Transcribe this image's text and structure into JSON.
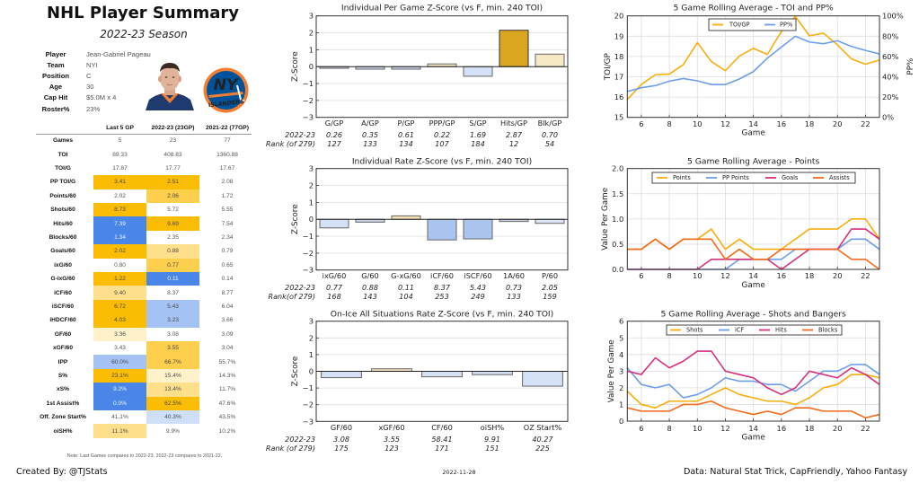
{
  "header": {
    "title": "NHL Player Summary",
    "season": "2022-23 Season"
  },
  "player": {
    "fields": [
      {
        "label": "Player",
        "value": "Jean-Gabriel Pageau"
      },
      {
        "label": "Team",
        "value": "NYI"
      },
      {
        "label": "Position",
        "value": "C"
      },
      {
        "label": "Age",
        "value": "30"
      },
      {
        "label": "Cap Hit",
        "value": "$5.0M x 4"
      },
      {
        "label": "Roster%",
        "value": "23%"
      }
    ],
    "headshot_icon": "player-headshot",
    "team_logo": {
      "icon": "new-york-islanders-logo",
      "mark": "NY",
      "wordmark": "ISLANDERS",
      "colors": {
        "primary": "#00539B",
        "secondary": "#F47D30"
      }
    }
  },
  "stats_table": {
    "columns": [
      "Last 5 GP",
      "2022-23 (23GP)",
      "2021-22 (77GP)"
    ],
    "palette": {
      "gold_strong": "#FBBC04",
      "gold_medium": "#FDCF4C",
      "gold_light": "#FEDF8C",
      "gold_pale": "#FFF1C9",
      "blue_strong": "#4A86E8",
      "blue_light": "#A4C2F4",
      "blue_pale": "#CFDFF8"
    },
    "rows": [
      {
        "label": "Games",
        "values": [
          "5",
          "23",
          "77"
        ],
        "shade": [
          null,
          null,
          null
        ]
      },
      {
        "label": "TOI",
        "values": [
          "89.33",
          "408.83",
          "1360.88"
        ],
        "shade": [
          null,
          null,
          null
        ]
      },
      {
        "label": "TOI/G",
        "values": [
          "17.87",
          "17.77",
          "17.67"
        ],
        "shade": [
          null,
          null,
          null
        ]
      },
      {
        "label": "PP TOI/G",
        "values": [
          "3.41",
          "2.51",
          "2.08"
        ],
        "shade": [
          "gold_strong",
          "gold_strong",
          null
        ]
      },
      {
        "label": "Points/60",
        "values": [
          "2.02",
          "2.06",
          "1.72"
        ],
        "shade": [
          null,
          "gold_medium",
          null
        ]
      },
      {
        "label": "Shots/60",
        "values": [
          "8.73",
          "5.72",
          "5.55"
        ],
        "shade": [
          "gold_strong",
          null,
          null
        ]
      },
      {
        "label": "Hits/60",
        "values": [
          "7.39",
          "9.69",
          "7.54"
        ],
        "shade": [
          "blue_strong",
          "gold_strong",
          null
        ]
      },
      {
        "label": "Blocks/60",
        "values": [
          "1.34",
          "2.35",
          "2.34"
        ],
        "shade": [
          "blue_strong",
          null,
          null
        ]
      },
      {
        "label": "Goals/60",
        "values": [
          "2.02",
          "0.88",
          "0.79"
        ],
        "shade": [
          "gold_strong",
          "gold_light",
          null
        ]
      },
      {
        "label": "ixG/60",
        "values": [
          "0.80",
          "0.77",
          "0.65"
        ],
        "shade": [
          null,
          "gold_medium",
          null
        ]
      },
      {
        "label": "G-ixG/60",
        "values": [
          "1.22",
          "0.11",
          "0.14"
        ],
        "shade": [
          "gold_strong",
          "blue_strong",
          null
        ]
      },
      {
        "label": "iCF/60",
        "values": [
          "9.40",
          "8.37",
          "8.77"
        ],
        "shade": [
          "gold_light",
          null,
          null
        ]
      },
      {
        "label": "iSCF/60",
        "values": [
          "6.72",
          "5.43",
          "6.04"
        ],
        "shade": [
          "gold_strong",
          "blue_light",
          null
        ]
      },
      {
        "label": "iHDCF/60",
        "values": [
          "4.03",
          "3.23",
          "3.66"
        ],
        "shade": [
          "gold_strong",
          "blue_light",
          null
        ]
      },
      {
        "label": "GF/60",
        "values": [
          "3.36",
          "3.08",
          "3.09"
        ],
        "shade": [
          "gold_pale",
          null,
          null
        ]
      },
      {
        "label": "xGF/60",
        "values": [
          "3.43",
          "3.55",
          "3.04"
        ],
        "shade": [
          null,
          "gold_medium",
          null
        ]
      },
      {
        "label": "IPP",
        "values": [
          "60.0%",
          "66.7%",
          "55.7%"
        ],
        "shade": [
          "blue_light",
          "gold_medium",
          null
        ]
      },
      {
        "label": "S%",
        "values": [
          "23.1%",
          "15.4%",
          "14.3%"
        ],
        "shade": [
          "gold_strong",
          "gold_pale",
          null
        ]
      },
      {
        "label": "xS%",
        "values": [
          "9.2%",
          "13.4%",
          "11.7%"
        ],
        "shade": [
          "blue_strong",
          "gold_light",
          null
        ]
      },
      {
        "label": "1st Assist%",
        "values": [
          "0.0%",
          "62.5%",
          "47.6%"
        ],
        "shade": [
          "blue_strong",
          "gold_strong",
          null
        ]
      },
      {
        "label": "Off. Zone Start%",
        "values": [
          "41.1%",
          "40.3%",
          "43.5%"
        ],
        "shade": [
          null,
          "blue_pale",
          null
        ]
      },
      {
        "label": "oiSH%",
        "values": [
          "11.1%",
          "9.9%",
          "10.2%"
        ],
        "shade": [
          "gold_light",
          null,
          null
        ]
      }
    ],
    "note": "Note: Last Games compares to 2022-23. 2022-23 compares to 2021-22."
  },
  "chart_data": [
    {
      "id": "per-game-z",
      "type": "bar",
      "title": "Individual Per Game Z-Score (vs F, min. 240 TOI)",
      "xlabel": "",
      "ylabel": "Z-Score",
      "ylim": [
        -3,
        3
      ],
      "yticks": [
        3,
        2,
        1,
        0,
        -1,
        -2,
        -3
      ],
      "ytick_labels": [
        "3",
        "2",
        "1",
        "0",
        "−1",
        "−2",
        "−3"
      ],
      "grid": "y",
      "categories": [
        "G/GP",
        "A/GP",
        "P/GP",
        "PPP/GP",
        "S/GP",
        "Hits/GP",
        "Blk/GP"
      ],
      "values": [
        -0.1,
        -0.15,
        -0.15,
        0.16,
        -0.57,
        2.15,
        0.74
      ],
      "colors": [
        "#C8D3E8",
        "#C8D3E8",
        "#C8D3E8",
        "#F8E8C0",
        "#D4E1F7",
        "#DAA520",
        "#F5E8C4"
      ],
      "rows": [
        {
          "label": "2022-23",
          "values": [
            "0.26",
            "0.35",
            "0.61",
            "0.22",
            "1.69",
            "2.87",
            "0.70"
          ]
        },
        {
          "label": "Rank (of 279)",
          "values": [
            "127",
            "133",
            "134",
            "107",
            "184",
            "12",
            "54"
          ]
        }
      ]
    },
    {
      "id": "rate-z",
      "type": "bar",
      "title": "Individual Rate Z-Score (vs F, min. 240 TOI)",
      "xlabel": "",
      "ylabel": "Z-Score",
      "ylim": [
        -3,
        3
      ],
      "yticks": [
        3,
        2,
        1,
        0,
        -1,
        -2,
        -3
      ],
      "ytick_labels": [
        "3",
        "2",
        "1",
        "0",
        "−1",
        "−2",
        "−3"
      ],
      "grid": "y",
      "categories": [
        "ixG/60",
        "G/60",
        "G-xG/60",
        "iCF/60",
        "iSCF/60",
        "1A/60",
        "P/60"
      ],
      "values": [
        -0.51,
        -0.17,
        0.2,
        -1.22,
        -1.16,
        -0.13,
        -0.24
      ],
      "colors": [
        "#D4E1F7",
        "#C8D3E8",
        "#F8E3B6",
        "#A9C4EE",
        "#AAC4EE",
        "#C8D3E8",
        "#DCE6F7"
      ],
      "rows": [
        {
          "label": "2022-23",
          "values": [
            "0.77",
            "0.88",
            "0.11",
            "8.37",
            "5.43",
            "0.73",
            "2.05"
          ]
        },
        {
          "label": "Rank(of 279)",
          "values": [
            "168",
            "143",
            "104",
            "253",
            "249",
            "133",
            "159"
          ]
        }
      ]
    },
    {
      "id": "on-ice-z",
      "type": "bar",
      "title": "On-Ice All Situations Rate Z-Score (vs F, min. 240 TOI)",
      "xlabel": "",
      "ylabel": "Z-Score",
      "ylim": [
        -3,
        3
      ],
      "yticks": [
        3,
        2,
        1,
        0,
        -1,
        -2,
        -3
      ],
      "ytick_labels": [
        "3",
        "2",
        "1",
        "0",
        "−1",
        "−2",
        "−3"
      ],
      "grid": "y",
      "categories": [
        "GF/60",
        "xGF/60",
        "CF/60",
        "oiSH%",
        "OZ Start%"
      ],
      "values": [
        -0.38,
        0.15,
        -0.33,
        -0.2,
        -0.89
      ],
      "colors": [
        "#D4E1F7",
        "#F2DFBE",
        "#D6E2F6",
        "#D4E0F4",
        "#D4E1F7"
      ],
      "rows": [
        {
          "label": "2022-23",
          "values": [
            "3.08",
            "3.55",
            "58.41",
            "9.91",
            "40.27"
          ]
        },
        {
          "label": "Rank (of 279)",
          "values": [
            "175",
            "123",
            "171",
            "151",
            "225"
          ]
        }
      ]
    },
    {
      "id": "rolling-toi-pp",
      "type": "line",
      "title": "5 Game Rolling Average - TOI and PP%",
      "xlabel": "Game",
      "ylabel": "TOI/GP",
      "ylabel_right": "PP%",
      "xlim": [
        5,
        23
      ],
      "x": [
        5,
        6,
        7,
        8,
        9,
        10,
        11,
        12,
        13,
        14,
        15,
        16,
        17,
        18,
        19,
        20,
        21,
        22,
        23
      ],
      "xticks": [
        6,
        8,
        10,
        12,
        14,
        16,
        18,
        20,
        22
      ],
      "xtick_labels": [
        "6",
        "8",
        "10",
        "12",
        "14",
        "16",
        "18",
        "20",
        "22"
      ],
      "ylim": [
        15,
        20
      ],
      "yticks": [
        15,
        16,
        17,
        18,
        19,
        20
      ],
      "ytick_labels": [
        "15",
        "16",
        "17",
        "18",
        "19",
        "20"
      ],
      "ylim_right": [
        0,
        100
      ],
      "yticks_right": [
        0,
        20,
        40,
        60,
        80,
        100
      ],
      "ytick_labels_right": [
        "0%",
        "20%",
        "40%",
        "60%",
        "80%",
        "100%"
      ],
      "grid": "both",
      "legend": "upper-center",
      "series": [
        {
          "name": "TOI/GP",
          "axis": "left",
          "color": "#F9AE0B",
          "values": [
            15.88,
            16.62,
            17.1,
            17.13,
            17.6,
            18.68,
            17.75,
            17.3,
            18.02,
            18.4,
            18.1,
            19.23,
            19.97,
            19.02,
            19.15,
            18.57,
            17.88,
            17.62,
            17.83
          ]
        },
        {
          "name": "PP%",
          "axis": "right",
          "color": "#6D9EEB",
          "values": [
            25.4,
            29.2,
            31.3,
            35.7,
            38.3,
            36.0,
            32.3,
            32.4,
            37.8,
            45.1,
            58.4,
            69.3,
            79.9,
            74.3,
            72.6,
            75.5,
            69.9,
            66.0,
            62.5
          ]
        }
      ]
    },
    {
      "id": "rolling-points",
      "type": "line",
      "title": "5 Game Rolling Average - Points",
      "xlabel": "Game",
      "ylabel": "Value Per Game",
      "xlim": [
        5,
        23
      ],
      "x": [
        5,
        6,
        7,
        8,
        9,
        10,
        11,
        12,
        13,
        14,
        15,
        16,
        17,
        18,
        19,
        20,
        21,
        22,
        23
      ],
      "xticks": [
        6,
        8,
        10,
        12,
        14,
        16,
        18,
        20,
        22
      ],
      "xtick_labels": [
        "6",
        "8",
        "10",
        "12",
        "14",
        "16",
        "18",
        "20",
        "22"
      ],
      "ylim": [
        0,
        2
      ],
      "yticks": [
        0,
        0.5,
        1,
        1.5,
        2
      ],
      "ytick_labels": [
        "0.0",
        "0.5",
        "1.0",
        "1.5",
        "2.0"
      ],
      "grid": "both",
      "legend": "upper-center",
      "series": [
        {
          "name": "Points",
          "axis": "left",
          "color": "#F9AE0B",
          "values": [
            0.4,
            0.4,
            0.6,
            0.4,
            0.6,
            0.6,
            0.8,
            0.4,
            0.6,
            0.4,
            0.4,
            0.4,
            0.6,
            0.8,
            0.8,
            0.8,
            1.0,
            1.0,
            0.6
          ]
        },
        {
          "name": "PP Points",
          "axis": "left",
          "color": "#6D9EEB",
          "values": [
            0,
            0,
            0,
            0,
            0,
            0,
            0,
            0,
            0.2,
            0.2,
            0.2,
            0.2,
            0.4,
            0.4,
            0.4,
            0.4,
            0.6,
            0.6,
            0.4
          ]
        },
        {
          "name": "Goals",
          "axis": "left",
          "color": "#D6307E",
          "values": [
            0,
            0,
            0,
            0,
            0,
            0,
            0.2,
            0.2,
            0.2,
            0.2,
            0.2,
            0,
            0.2,
            0.4,
            0.4,
            0.4,
            0.8,
            0.8,
            0.6
          ]
        },
        {
          "name": "Assists",
          "axis": "left",
          "color": "#F26A1B",
          "values": [
            0.4,
            0.4,
            0.6,
            0.4,
            0.6,
            0.6,
            0.6,
            0.2,
            0.4,
            0.2,
            0.2,
            0.4,
            0.4,
            0.4,
            0.4,
            0.4,
            0.2,
            0.2,
            0.0
          ]
        }
      ]
    },
    {
      "id": "rolling-shots-bangers",
      "type": "line",
      "title": "5 Game Rolling Average - Shots and Bangers",
      "xlabel": "Game",
      "ylabel": "Value Per Game",
      "xlim": [
        5,
        23
      ],
      "x": [
        5,
        6,
        7,
        8,
        9,
        10,
        11,
        12,
        13,
        14,
        15,
        16,
        17,
        18,
        19,
        20,
        21,
        22,
        23
      ],
      "xticks": [
        6,
        8,
        10,
        12,
        14,
        16,
        18,
        20,
        22
      ],
      "xtick_labels": [
        "6",
        "8",
        "10",
        "12",
        "14",
        "16",
        "18",
        "20",
        "22"
      ],
      "ylim": [
        0,
        6
      ],
      "yticks": [
        0,
        1,
        2,
        3,
        4,
        5,
        6
      ],
      "ytick_labels": [
        "0",
        "1",
        "2",
        "3",
        "4",
        "5",
        "6"
      ],
      "grid": "both",
      "legend": "upper-center",
      "series": [
        {
          "name": "Shots",
          "axis": "left",
          "color": "#F9AE0B",
          "values": [
            1.8,
            1.0,
            0.8,
            1.2,
            1.2,
            1.2,
            1.6,
            2.0,
            1.6,
            1.4,
            1.2,
            1.2,
            1.0,
            1.4,
            2.0,
            2.2,
            2.8,
            2.8,
            2.6
          ]
        },
        {
          "name": "iCF",
          "axis": "left",
          "color": "#6D9EEB",
          "values": [
            3.2,
            2.2,
            2.0,
            2.2,
            1.4,
            1.6,
            2.0,
            2.6,
            2.4,
            2.4,
            2.2,
            2.2,
            1.8,
            2.4,
            3.0,
            3.0,
            3.4,
            3.4,
            2.8
          ]
        },
        {
          "name": "Hits",
          "axis": "left",
          "color": "#D6307E",
          "values": [
            3.0,
            2.8,
            3.8,
            3.2,
            3.6,
            4.2,
            4.2,
            3.0,
            2.8,
            2.6,
            2.0,
            1.6,
            2.0,
            3.0,
            2.8,
            2.6,
            3.2,
            2.8,
            2.2
          ]
        },
        {
          "name": "Blocks",
          "axis": "left",
          "color": "#F26A1B",
          "values": [
            0.8,
            0.6,
            0.6,
            0.6,
            1.0,
            1.0,
            1.2,
            0.8,
            0.6,
            0.4,
            0.6,
            0.4,
            0.8,
            0.8,
            0.6,
            0.6,
            0.6,
            0.2,
            0.4
          ]
        }
      ]
    }
  ],
  "footer": {
    "credit": "Created By: @TJStats",
    "date": "2022-11-28",
    "source": "Data: Natural Stat Trick, CapFriendly, Yahoo Fantasy"
  }
}
